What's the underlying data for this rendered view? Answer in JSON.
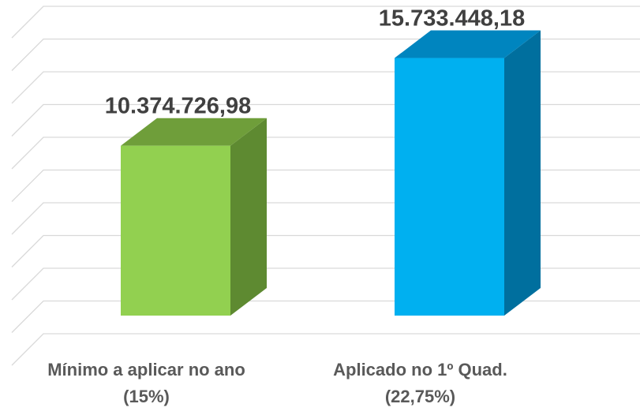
{
  "chart_data": {
    "type": "bar3d",
    "categories": [
      "Mínimo a aplicar no ano (15%)",
      "Aplicado no 1º Quad. (22,75%)"
    ],
    "series": [
      {
        "values": [
          10374726.98,
          15733448.18
        ],
        "value_labels": [
          "10.374.726,98",
          "15.733.448,18"
        ],
        "colors": [
          {
            "front": "#92d050",
            "top": "#6f9e3a",
            "side": "#5e8a31"
          },
          {
            "front": "#00b0f0",
            "top": "#0085bf",
            "side": "#006f9e"
          }
        ]
      }
    ],
    "ylim": [
      0,
      20000000
    ],
    "yticks": [
      0,
      2000000,
      4000000,
      6000000,
      8000000,
      10000000,
      12000000,
      14000000,
      16000000,
      18000000,
      20000000
    ],
    "grid": true
  }
}
